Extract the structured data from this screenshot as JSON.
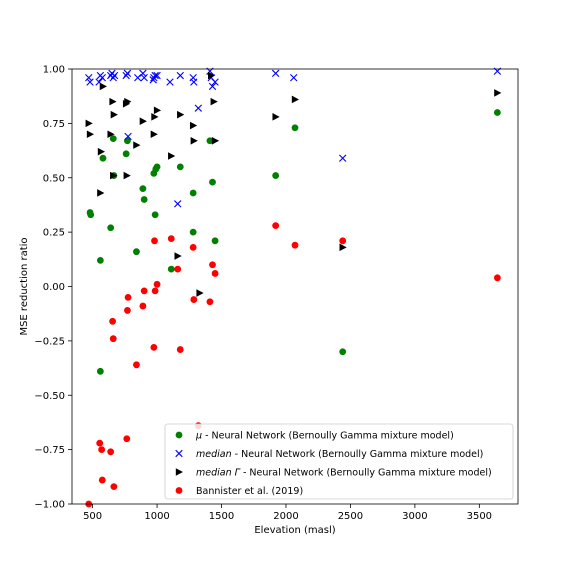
{
  "chart_data": {
    "type": "scatter",
    "title": "",
    "xlabel": "Elevation (masl)",
    "ylabel": "MSE reduction ratio",
    "xlim": [
      340,
      3800
    ],
    "ylim": [
      -1.0,
      1.0
    ],
    "xticks": [
      500,
      1000,
      1500,
      2000,
      2500,
      3000,
      3500
    ],
    "xtick_labels": [
      "500",
      "1000",
      "1500",
      "2000",
      "2500",
      "3000",
      "3500"
    ],
    "yticks": [
      -1.0,
      -0.75,
      -0.5,
      -0.25,
      0.0,
      0.25,
      0.5,
      0.75,
      1.0
    ],
    "ytick_labels": [
      "−1.00",
      "−0.75",
      "−0.50",
      "−0.25",
      "0.00",
      "0.25",
      "0.50",
      "0.75",
      "1.00"
    ],
    "grid": false,
    "legend_position": "lower-right",
    "series": [
      {
        "name": "μ - Neural Network (Bernoully Gamma mixture model)",
        "legend_prefix": "μ",
        "legend_suffix": " - Neural Network (Bernoully Gamma mixture model)",
        "marker": "circle",
        "color": "#008000",
        "points": [
          [
            480,
            0.34
          ],
          [
            485,
            0.33
          ],
          [
            560,
            0.12
          ],
          [
            560,
            -0.39
          ],
          [
            580,
            0.59
          ],
          [
            640,
            0.27
          ],
          [
            660,
            0.68
          ],
          [
            665,
            0.51
          ],
          [
            760,
            0.61
          ],
          [
            770,
            0.67
          ],
          [
            840,
            0.16
          ],
          [
            890,
            0.45
          ],
          [
            900,
            0.4
          ],
          [
            975,
            0.52
          ],
          [
            985,
            0.33
          ],
          [
            990,
            0.54
          ],
          [
            1000,
            0.55
          ],
          [
            1110,
            0.08
          ],
          [
            1180,
            0.55
          ],
          [
            1280,
            0.43
          ],
          [
            1280,
            0.25
          ],
          [
            1410,
            0.67
          ],
          [
            1430,
            0.48
          ],
          [
            1450,
            0.21
          ],
          [
            1920,
            0.51
          ],
          [
            2070,
            0.73
          ],
          [
            2440,
            -0.3
          ],
          [
            3640,
            0.8
          ]
        ]
      },
      {
        "name": "median - Neural Network (Bernoully Gamma mixture model)",
        "legend_prefix": "median",
        "legend_suffix": " - Neural Network (Bernoully Gamma mixture model)",
        "marker": "x",
        "color": "#0000ff",
        "points": [
          [
            470,
            0.96
          ],
          [
            480,
            0.94
          ],
          [
            550,
            0.94
          ],
          [
            560,
            0.97
          ],
          [
            575,
            0.96
          ],
          [
            640,
            0.97
          ],
          [
            650,
            0.98
          ],
          [
            660,
            0.96
          ],
          [
            670,
            0.97
          ],
          [
            760,
            0.97
          ],
          [
            770,
            0.98
          ],
          [
            775,
            0.69
          ],
          [
            850,
            0.96
          ],
          [
            890,
            0.98
          ],
          [
            900,
            0.96
          ],
          [
            970,
            0.95
          ],
          [
            975,
            0.96
          ],
          [
            985,
            0.97
          ],
          [
            1000,
            0.97
          ],
          [
            1100,
            0.94
          ],
          [
            1160,
            0.38
          ],
          [
            1180,
            0.97
          ],
          [
            1280,
            0.96
          ],
          [
            1285,
            0.94
          ],
          [
            1320,
            0.82
          ],
          [
            1410,
            0.99
          ],
          [
            1420,
            0.96
          ],
          [
            1430,
            0.92
          ],
          [
            1450,
            0.94
          ],
          [
            1920,
            0.98
          ],
          [
            2060,
            0.96
          ],
          [
            2440,
            0.59
          ],
          [
            3640,
            0.99
          ]
        ]
      },
      {
        "name": "median Γ - Neural Network (Bernoully Gamma mixture model)",
        "legend_prefix": "median Γ",
        "legend_suffix": " - Neural Network (Bernoully Gamma mixture model)",
        "marker": "triangle-right",
        "color": "#000000",
        "points": [
          [
            470,
            0.75
          ],
          [
            480,
            0.7
          ],
          [
            560,
            0.43
          ],
          [
            565,
            0.62
          ],
          [
            580,
            0.92
          ],
          [
            640,
            0.7
          ],
          [
            655,
            0.85
          ],
          [
            660,
            0.51
          ],
          [
            665,
            0.79
          ],
          [
            760,
            0.84
          ],
          [
            765,
            0.51
          ],
          [
            770,
            0.85
          ],
          [
            840,
            0.65
          ],
          [
            890,
            0.76
          ],
          [
            975,
            0.7
          ],
          [
            980,
            0.78
          ],
          [
            1000,
            0.81
          ],
          [
            1110,
            0.6
          ],
          [
            1160,
            0.14
          ],
          [
            1180,
            0.79
          ],
          [
            1280,
            0.74
          ],
          [
            1285,
            0.67
          ],
          [
            1330,
            -0.03
          ],
          [
            1420,
            0.97
          ],
          [
            1440,
            0.85
          ],
          [
            1450,
            0.67
          ],
          [
            1920,
            0.78
          ],
          [
            2070,
            0.86
          ],
          [
            2440,
            0.18
          ],
          [
            3640,
            0.89
          ]
        ]
      },
      {
        "name": "Bannister et al. (2019)",
        "legend_prefix": "",
        "legend_suffix": "Bannister et al. (2019)",
        "marker": "circle",
        "color": "#ff0000",
        "points": [
          [
            470,
            -1.0
          ],
          [
            555,
            -0.72
          ],
          [
            570,
            -0.75
          ],
          [
            575,
            -0.89
          ],
          [
            640,
            -0.76
          ],
          [
            655,
            -0.16
          ],
          [
            660,
            -0.24
          ],
          [
            665,
            -0.92
          ],
          [
            765,
            -0.7
          ],
          [
            770,
            -0.11
          ],
          [
            775,
            -0.05
          ],
          [
            840,
            -0.36
          ],
          [
            890,
            -0.09
          ],
          [
            900,
            -0.02
          ],
          [
            975,
            -0.28
          ],
          [
            980,
            0.21
          ],
          [
            985,
            -0.02
          ],
          [
            1000,
            0.01
          ],
          [
            1110,
            0.22
          ],
          [
            1160,
            0.08
          ],
          [
            1180,
            -0.29
          ],
          [
            1280,
            0.18
          ],
          [
            1285,
            -0.06
          ],
          [
            1320,
            -0.64
          ],
          [
            1410,
            -0.07
          ],
          [
            1430,
            0.1
          ],
          [
            1450,
            0.06
          ],
          [
            1920,
            0.28
          ],
          [
            2070,
            0.19
          ],
          [
            2440,
            0.21
          ],
          [
            3640,
            0.04
          ]
        ]
      }
    ]
  }
}
